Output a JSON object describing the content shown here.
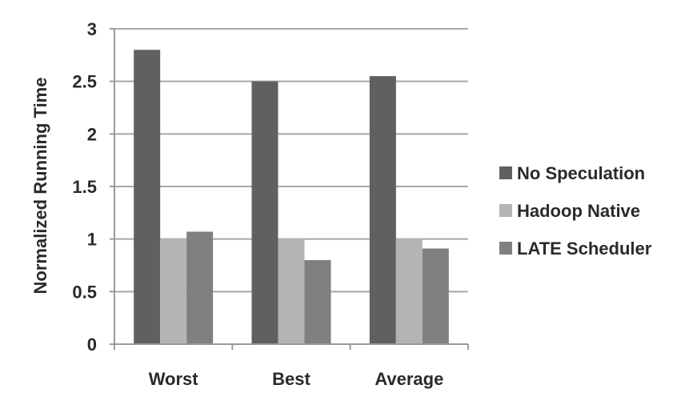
{
  "chart_data": {
    "type": "bar",
    "title": "",
    "xlabel": "",
    "ylabel": "Normalized Running Time",
    "categories": [
      "Worst",
      "Best",
      "Average"
    ],
    "series": [
      {
        "name": "No Speculation",
        "values": [
          2.8,
          2.5,
          2.55
        ],
        "color": "#606060"
      },
      {
        "name": "Hadoop Native",
        "values": [
          1.0,
          1.0,
          1.0
        ],
        "color": "#b4b4b4"
      },
      {
        "name": "LATE Scheduler",
        "values": [
          1.07,
          0.8,
          0.91
        ],
        "color": "#808080"
      }
    ],
    "ylim": [
      0,
      3
    ],
    "yticks": [
      "0",
      "0.5",
      "1",
      "1.5",
      "2",
      "2.5",
      "3"
    ],
    "ytick_values": [
      0,
      0.5,
      1,
      1.5,
      2,
      2.5,
      3
    ],
    "grid": true,
    "legend": "right"
  }
}
